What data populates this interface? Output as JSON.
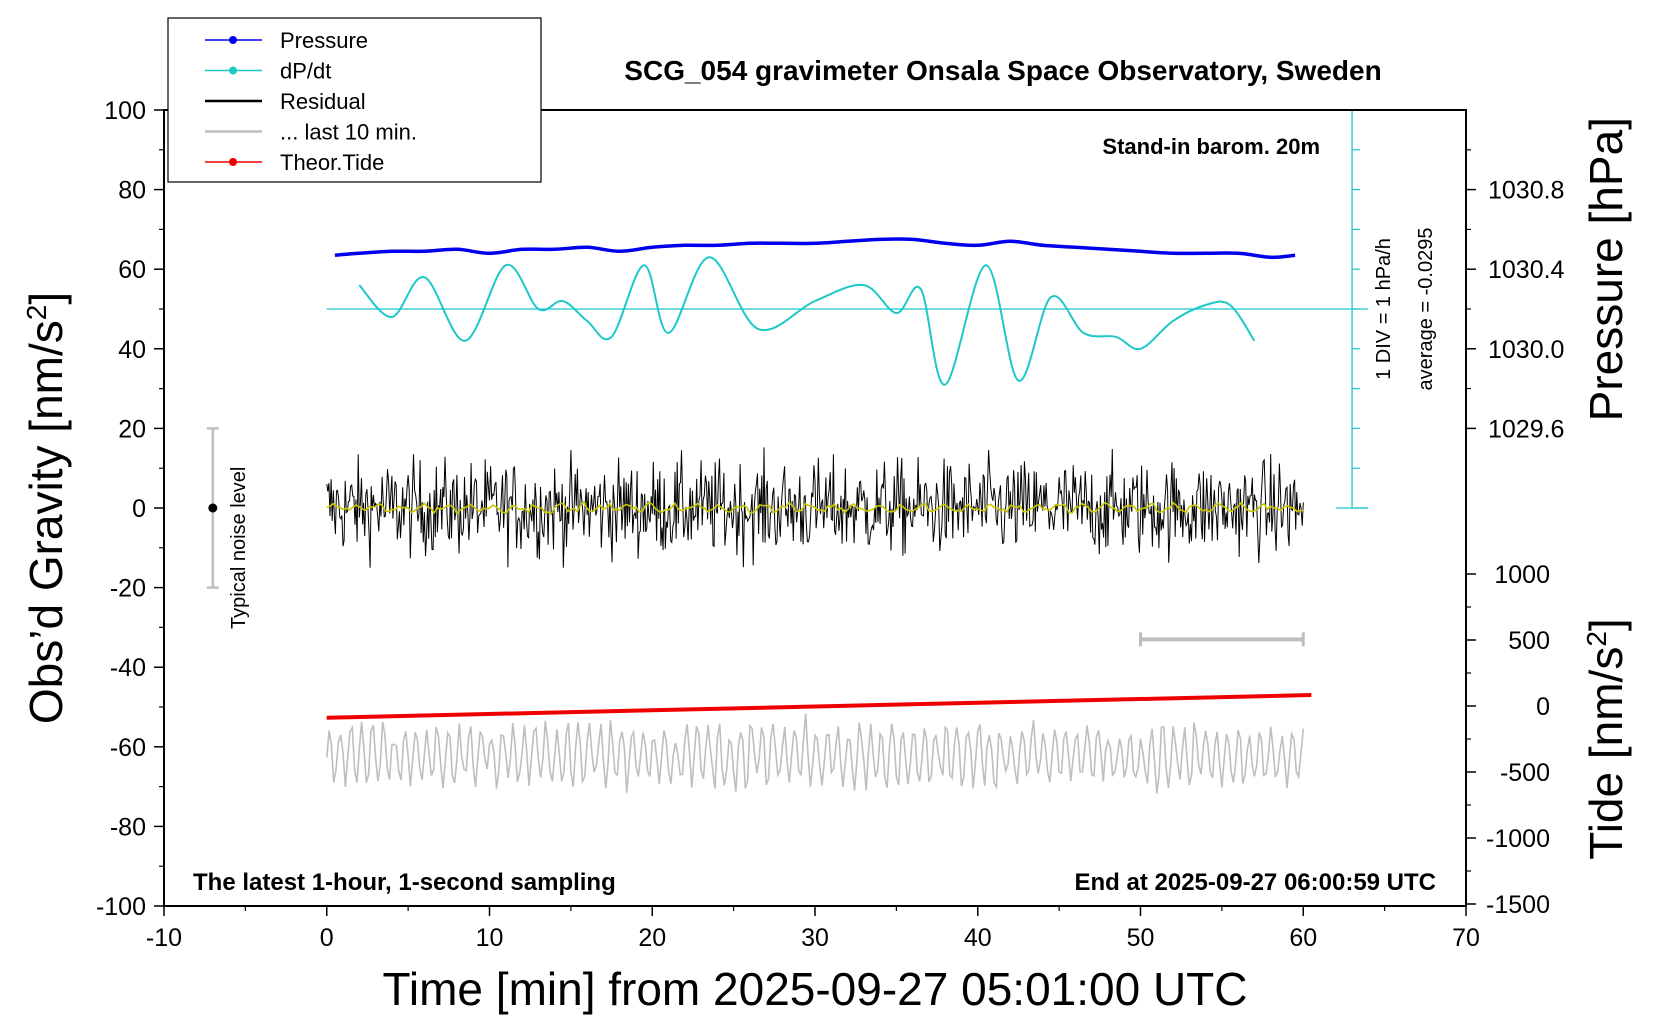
{
  "chart_data": {
    "type": "line",
    "title": "SCG_054 gravimeter Onsala Space Observatory, Sweden",
    "annotations": {
      "barometer": "Stand-in barom. 20m",
      "sampling": "The latest 1-hour, 1-second sampling",
      "end_time": "End at 2025-09-27 06:00:59 UTC",
      "noise_level": "Typical noise level",
      "dpdt_scale": "1 DIV = 1 hPa/h",
      "dpdt_average": "average = -0.0295"
    },
    "x_axis": {
      "label": "Time [min] from 2025-09-27 05:01:00 UTC",
      "range": [
        -10,
        70
      ],
      "ticks": [
        -10,
        0,
        10,
        20,
        30,
        40,
        50,
        60,
        70
      ],
      "tick_labels": [
        "-10",
        "0",
        "10",
        "20",
        "30",
        "40",
        "50",
        "60",
        "70"
      ]
    },
    "y_left": {
      "label": "Obs’d Gravity [nm/s²]",
      "label_main": "Obs’d Gravity [nm/s",
      "label_sup": "2",
      "label_end": "]",
      "range": [
        -100,
        100
      ],
      "ticks": [
        -100,
        -80,
        -60,
        -40,
        -20,
        0,
        20,
        40,
        60,
        80,
        100
      ],
      "tick_labels": [
        "-100",
        "-80",
        "-60",
        "-40",
        "-20",
        "0",
        "20",
        "40",
        "60",
        "80",
        "100"
      ]
    },
    "y_pressure": {
      "label": "Pressure [hPa]",
      "ticks": [
        1029.6,
        1030.0,
        1030.4,
        1030.8
      ],
      "tick_labels": [
        "1029.6",
        "1030.0",
        "1030.4",
        "1030.8"
      ]
    },
    "y_tide": {
      "label": "Tide [nm/s²]",
      "label_main": "Tide [nm/s",
      "label_sup": "2",
      "label_end": "]",
      "ticks": [
        -1500,
        -1000,
        -500,
        0,
        500,
        1000
      ],
      "tick_labels": [
        "-1500",
        "-1000",
        "-500",
        "0",
        "500",
        "1000"
      ]
    },
    "legend": {
      "placement": "top-left",
      "entries": [
        {
          "name": "Pressure",
          "color": "#0000ee",
          "marker": true
        },
        {
          "name": "dP/dt",
          "color": "#1ec8c8",
          "marker": true
        },
        {
          "name": "Residual",
          "color": "#000000",
          "marker": false
        },
        {
          "name": "... last 10 min.",
          "color": "#bebebe",
          "marker": false
        },
        {
          "name": "Theor.Tide",
          "color": "#ee0000",
          "marker": true
        }
      ]
    },
    "series": [
      {
        "name": "Pressure",
        "color": "#0000ee",
        "x": [
          0.5,
          2,
          4,
          6,
          8,
          10,
          12,
          14,
          16,
          18,
          20,
          22,
          24,
          26,
          28,
          30,
          32,
          34,
          36,
          38,
          40,
          42,
          44,
          46,
          48,
          50,
          52,
          54,
          56,
          58,
          59.5
        ],
        "y": [
          1030.47,
          1030.48,
          1030.49,
          1030.49,
          1030.5,
          1030.48,
          1030.5,
          1030.5,
          1030.51,
          1030.49,
          1030.51,
          1030.52,
          1030.52,
          1030.53,
          1030.53,
          1030.53,
          1030.54,
          1030.55,
          1030.55,
          1030.53,
          1030.52,
          1030.54,
          1030.52,
          1030.51,
          1030.5,
          1030.49,
          1030.48,
          1030.48,
          1030.48,
          1030.46,
          1030.47
        ]
      },
      {
        "name": "dP/dt",
        "color": "#1ec8c8",
        "x": [
          2,
          4,
          6,
          8.5,
          11,
          13,
          14.5,
          16,
          17.5,
          19.5,
          21,
          23.5,
          26.5,
          30,
          33,
          35,
          36.5,
          38,
          40.5,
          42.5,
          44.5,
          46.5,
          48.5,
          50,
          52,
          54,
          55.5,
          57
        ],
        "y": [
          56,
          48,
          58,
          42,
          61,
          50,
          52,
          47,
          43,
          61,
          44,
          63,
          45,
          52,
          56,
          49,
          55,
          31,
          61,
          32,
          53,
          44,
          43,
          40,
          47,
          51,
          51,
          42
        ],
        "reference_level": 50
      },
      {
        "name": "Residual",
        "color": "#000000",
        "x_range": [
          0,
          60
        ],
        "center": 0,
        "typical_amplitude": 10,
        "envelope": [
          -15,
          17
        ]
      },
      {
        "name": "... last 10 min.",
        "color": "#bebebe",
        "x_range": [
          0,
          60
        ],
        "center": -62,
        "typical_amplitude": 8,
        "envelope": [
          -77,
          -51
        ]
      },
      {
        "name": "Theor.Tide",
        "color": "#ee0000",
        "x": [
          0,
          60.5
        ],
        "y": [
          -52.7,
          -47.0
        ]
      },
      {
        "name": "smoothed",
        "color": "#c8c800",
        "x_range": [
          0,
          60
        ],
        "center": 0,
        "typical_amplitude": 1.5
      }
    ],
    "noise_bar": {
      "x": -7,
      "y": 0,
      "half_height": 20
    },
    "ten_min_bar": {
      "x": [
        50,
        60
      ],
      "y": -33
    },
    "dpdt_scale_axis": {
      "x": 63,
      "y_range": [
        0,
        100
      ],
      "div": 10
    }
  }
}
